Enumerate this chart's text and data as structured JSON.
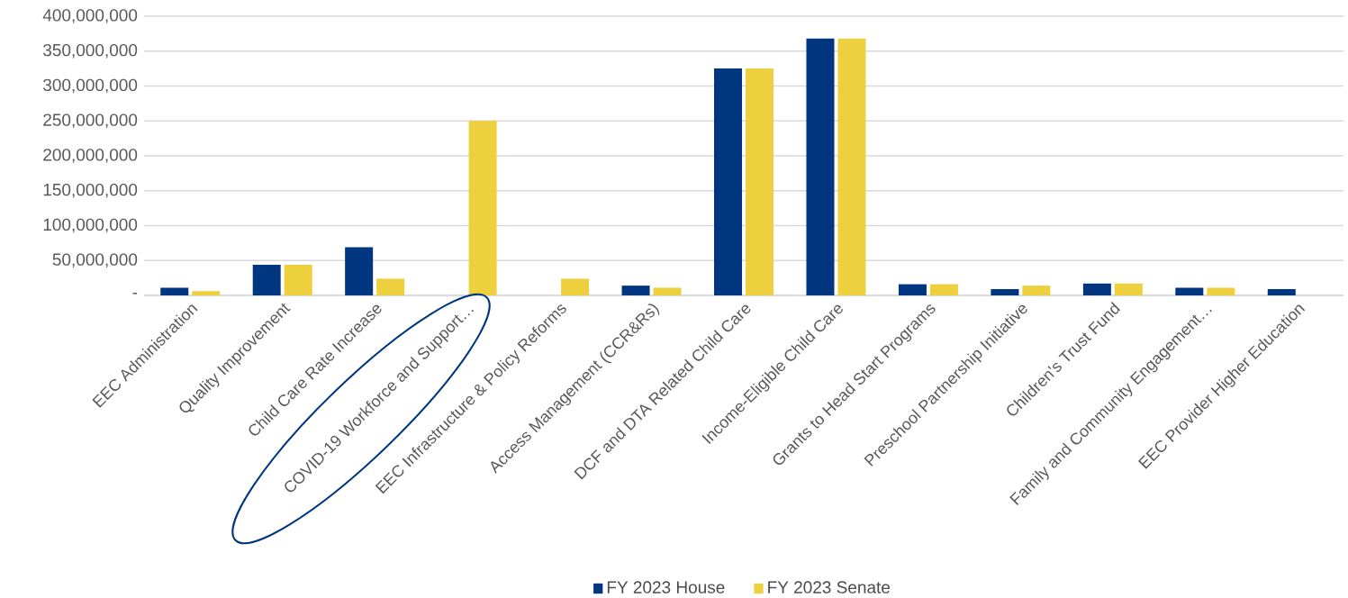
{
  "chart_data": {
    "type": "bar",
    "categories": [
      "EEC Administration",
      "Quality Improvement",
      "Child Care Rate Increase",
      "COVID-19 Workforce and Support…",
      "EEC Infrastructure & Policy Reforms",
      "Access Management (CCR&Rs)",
      "DCF and DTA Related Child Care",
      "Income-Eligible Child Care",
      "Grants to Head Start Programs",
      "Preschool Partnership Initiative",
      "Children's Trust Fund",
      "Family and Community Engagement…",
      "EEC Provider Higher Education"
    ],
    "series": [
      {
        "name": "FY 2023 House",
        "color": "#003580",
        "values": [
          11000000,
          44000000,
          69000000,
          null,
          null,
          14000000,
          325000000,
          368000000,
          16000000,
          9000000,
          17000000,
          11000000,
          9000000
        ]
      },
      {
        "name": "FY 2023 Senate",
        "color": "#eecf3d",
        "values": [
          6000000,
          44000000,
          24000000,
          250000000,
          24000000,
          11000000,
          325000000,
          368000000,
          16000000,
          14000000,
          17000000,
          11000000,
          null
        ]
      }
    ],
    "ylim": [
      0,
      400000000
    ],
    "yticks": [
      {
        "value": 0,
        "label": "-"
      },
      {
        "value": 50000000,
        "label": "50,000,000"
      },
      {
        "value": 100000000,
        "label": "100,000,000"
      },
      {
        "value": 150000000,
        "label": "150,000,000"
      },
      {
        "value": 200000000,
        "label": "200,000,000"
      },
      {
        "value": 250000000,
        "label": "250,000,000"
      },
      {
        "value": 300000000,
        "label": "300,000,000"
      },
      {
        "value": 350000000,
        "label": "350,000,000"
      },
      {
        "value": 400000000,
        "label": "400,000,000"
      }
    ],
    "grid": "y",
    "legend": "bottom"
  }
}
